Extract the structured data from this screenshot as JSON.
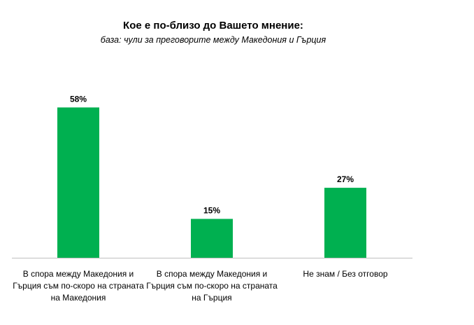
{
  "chart_data": {
    "type": "bar",
    "title": "Кое е по-близо до Вашето мнение:",
    "subtitle": "база: чули за преговорите между Македония и Гърция",
    "categories": [
      "В спора между Македония и Гърция съм по-скоро  на страната на Македония",
      "В спора между Македония и Гърция съм по-скоро  на страната на Гърция",
      "Не знам / Без отговор"
    ],
    "values": [
      58,
      15,
      27
    ],
    "data_labels": [
      "58%",
      "15%",
      "27%"
    ],
    "ylim": [
      0,
      100
    ],
    "grid": false,
    "legend": "none",
    "bar_color": "#00B050",
    "axis_color": "#BFBFBF"
  }
}
